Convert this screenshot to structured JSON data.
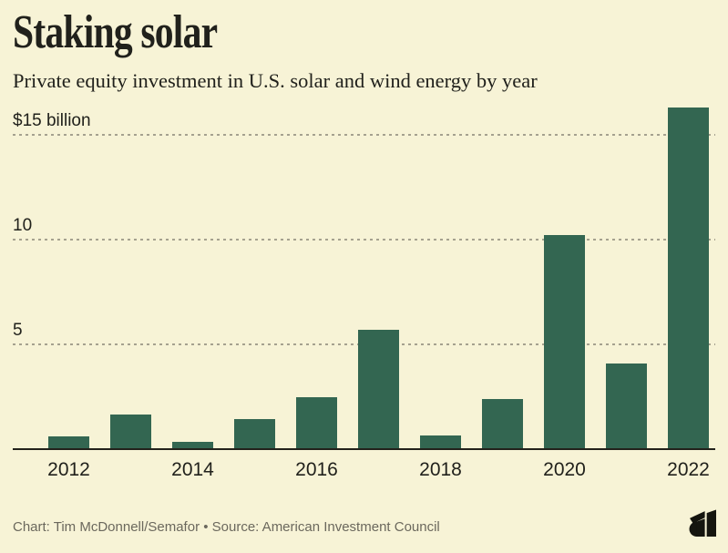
{
  "chart_data": {
    "type": "bar",
    "title": "Staking solar",
    "subtitle": "Private equity investment in U.S. solar and wind energy by year",
    "unit": "billions of U.S. dollars",
    "categories": [
      "2012",
      "2013",
      "2014",
      "2015",
      "2016",
      "2017",
      "2018",
      "2019",
      "2020",
      "2021",
      "2022"
    ],
    "values": [
      0.6,
      1.65,
      0.35,
      1.45,
      2.5,
      5.7,
      0.65,
      2.4,
      10.2,
      4.1,
      16.3
    ],
    "y_ticks": [
      {
        "value": 15,
        "label": "$15 billion"
      },
      {
        "value": 10,
        "label": "10"
      },
      {
        "value": 5,
        "label": "5"
      }
    ],
    "x_tick_labels": [
      "2012",
      "2014",
      "2016",
      "2018",
      "2020",
      "2022"
    ],
    "ylim": [
      0,
      16.5
    ],
    "grid": "horizontal-dashed",
    "legend": "none"
  },
  "footer": {
    "credit": "Chart: Tim McDonnell/Semafor • Source: American Investment Council",
    "logo": "semafor-s-logomark"
  },
  "theme": {
    "background": "#f7f3d6",
    "bar": "#336651",
    "grid": "#a5a18f",
    "axis": "#23221c",
    "text": "#21211c",
    "muted": "#6b685d"
  }
}
